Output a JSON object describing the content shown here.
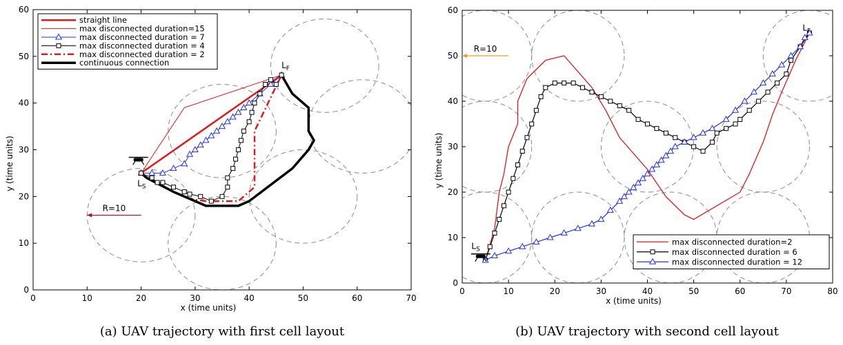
{
  "chart_data": [
    {
      "type": "line",
      "caption": "(a) UAV trajectory with first cell layout",
      "xlabel": "x (time units)",
      "ylabel": "y (time units)",
      "xlim": [
        0,
        70
      ],
      "ylim": [
        0,
        60
      ],
      "xticks": [
        0,
        10,
        20,
        30,
        40,
        50,
        60,
        70
      ],
      "yticks": [
        0,
        10,
        20,
        30,
        40,
        50,
        60
      ],
      "grid": false,
      "legend_position": "top-left",
      "cells": [
        {
          "cx": 20,
          "cy": 16,
          "r": 10
        },
        {
          "cx": 35,
          "cy": 10,
          "r": 10
        },
        {
          "cx": 35,
          "cy": 34,
          "r": 10
        },
        {
          "cx": 50,
          "cy": 20,
          "r": 10
        },
        {
          "cx": 54,
          "cy": 48,
          "r": 10
        },
        {
          "cx": 61,
          "cy": 35,
          "r": 10
        }
      ],
      "annotations": {
        "start_label": "L",
        "start_sub": "S",
        "final_label": "L",
        "final_sub": "F",
        "radius_label": "R=10",
        "radius_color": "#a5152d"
      },
      "start": [
        20,
        25
      ],
      "final": [
        46,
        46
      ],
      "series": [
        {
          "name": "straight line",
          "color": "#e01818",
          "width": 2.5,
          "dash": "",
          "marker": "none",
          "points": [
            [
              20,
              25
            ],
            [
              46,
              46
            ]
          ]
        },
        {
          "name": "max disconnected duration=15",
          "color": "#e01818",
          "width": 1,
          "dash": "",
          "marker": "none",
          "points": [
            [
              20,
              25
            ],
            [
              28,
              39
            ],
            [
              46,
              46
            ]
          ]
        },
        {
          "name": "max disconnected duration = 7",
          "color": "#2030f0",
          "width": 1,
          "dash": "",
          "marker": "triangle",
          "points": [
            [
              20,
              25
            ],
            [
              22,
              25
            ],
            [
              24,
              25
            ],
            [
              26,
              26
            ],
            [
              28,
              27
            ],
            [
              29,
              29
            ],
            [
              30,
              30
            ],
            [
              31,
              31
            ],
            [
              32,
              32
            ],
            [
              33,
              33
            ],
            [
              34,
              34
            ],
            [
              35,
              35
            ],
            [
              36,
              36
            ],
            [
              37,
              37
            ],
            [
              38,
              38
            ],
            [
              39,
              39
            ],
            [
              40,
              40
            ],
            [
              42,
              42
            ],
            [
              44,
              44
            ],
            [
              46,
              46
            ]
          ]
        },
        {
          "name": "max disconnected duration = 4",
          "color": "#000000",
          "width": 1,
          "dash": "",
          "marker": "square",
          "points": [
            [
              20,
              25
            ],
            [
              22,
              24
            ],
            [
              23,
              23
            ],
            [
              24,
              23
            ],
            [
              26,
              22
            ],
            [
              28,
              21
            ],
            [
              29,
              20.5
            ],
            [
              31,
              20
            ],
            [
              33,
              19
            ],
            [
              35,
              20
            ],
            [
              36,
              22
            ],
            [
              36,
              24
            ],
            [
              37,
              26
            ],
            [
              37.5,
              28
            ],
            [
              38,
              30
            ],
            [
              38.5,
              32
            ],
            [
              39,
              34
            ],
            [
              40,
              36
            ],
            [
              40.5,
              38
            ],
            [
              41,
              40
            ],
            [
              42,
              42
            ],
            [
              43,
              44
            ],
            [
              44,
              45
            ],
            [
              45,
              44
            ],
            [
              46,
              46
            ]
          ]
        },
        {
          "name": "max disconnected duration = 2",
          "color": "#e01818",
          "width": 2.5,
          "dash": "9 4 2 4",
          "marker": "none",
          "points": [
            [
              20,
              25
            ],
            [
              26,
              21
            ],
            [
              29,
              19.5
            ],
            [
              32,
              19
            ],
            [
              38,
              19
            ],
            [
              40,
              21
            ],
            [
              41,
              22
            ],
            [
              41,
              34
            ],
            [
              46,
              46
            ]
          ]
        },
        {
          "name": "continuous connection",
          "color": "#000000",
          "width": 3.5,
          "dash": "",
          "marker": "none",
          "points": [
            [
              20,
              25
            ],
            [
              21,
              24
            ],
            [
              26,
              21
            ],
            [
              32,
              18
            ],
            [
              38,
              18
            ],
            [
              40,
              19
            ],
            [
              48,
              26
            ],
            [
              51,
              30
            ],
            [
              52,
              32
            ],
            [
              51,
              34
            ],
            [
              51,
              39
            ],
            [
              48,
              42
            ],
            [
              46,
              46
            ]
          ]
        }
      ]
    },
    {
      "type": "line",
      "caption": "(b) UAV trajectory with second cell layout",
      "xlabel": "x (time units)",
      "ylabel": "y (time units)",
      "xlim": [
        0,
        80
      ],
      "ylim": [
        0,
        60
      ],
      "xticks": [
        0,
        10,
        20,
        30,
        40,
        50,
        60,
        70,
        80
      ],
      "yticks": [
        0,
        10,
        20,
        30,
        40,
        50,
        60
      ],
      "grid": false,
      "legend_position": "bottom-right",
      "cells": [
        {
          "cx": 5,
          "cy": 50,
          "r": 10
        },
        {
          "cx": 25,
          "cy": 50,
          "r": 10
        },
        {
          "cx": 75,
          "cy": 50,
          "r": 10
        },
        {
          "cx": 5,
          "cy": 30,
          "r": 10
        },
        {
          "cx": 40,
          "cy": 30,
          "r": 10
        },
        {
          "cx": 65,
          "cy": 30,
          "r": 10
        },
        {
          "cx": 5,
          "cy": 10,
          "r": 10
        },
        {
          "cx": 25,
          "cy": 10,
          "r": 10
        },
        {
          "cx": 45,
          "cy": 10,
          "r": 10
        },
        {
          "cx": 65,
          "cy": 10,
          "r": 10
        }
      ],
      "annotations": {
        "start_label": "L",
        "start_sub": "S",
        "final_label": "L",
        "final_sub": "F",
        "radius_label": "R=10",
        "radius_color": "#e6a020"
      },
      "start": [
        5,
        5
      ],
      "final": [
        75,
        55
      ],
      "series": [
        {
          "name": "max disconnected duration=2",
          "color": "#e01818",
          "width": 1.3,
          "dash": "",
          "marker": "none",
          "points": [
            [
              5,
              5
            ],
            [
              7,
              12
            ],
            [
              8,
              20
            ],
            [
              9,
              24
            ],
            [
              10,
              30
            ],
            [
              12,
              35
            ],
            [
              12,
              40
            ],
            [
              14,
              45
            ],
            [
              18,
              49
            ],
            [
              20,
              49.5
            ],
            [
              22,
              50
            ],
            [
              28,
              43
            ],
            [
              31,
              38
            ],
            [
              34,
              32
            ],
            [
              40,
              25
            ],
            [
              44,
              19
            ],
            [
              48,
              15
            ],
            [
              50,
              14
            ],
            [
              55,
              17
            ],
            [
              60,
              20
            ],
            [
              62,
              24
            ],
            [
              65,
              31
            ],
            [
              67,
              37
            ],
            [
              69,
              42
            ],
            [
              72,
              49
            ],
            [
              75,
              55
            ]
          ]
        },
        {
          "name": "max disconnected duration = 6",
          "color": "#000000",
          "width": 1.2,
          "dash": "",
          "marker": "square",
          "points": [
            [
              5,
              5
            ],
            [
              6,
              8
            ],
            [
              7,
              11
            ],
            [
              8,
              14
            ],
            [
              9,
              17
            ],
            [
              10,
              20
            ],
            [
              11,
              23
            ],
            [
              12,
              26
            ],
            [
              13,
              29
            ],
            [
              14,
              32
            ],
            [
              15,
              35
            ],
            [
              16,
              38
            ],
            [
              17,
              41
            ],
            [
              18,
              43
            ],
            [
              20,
              44
            ],
            [
              22,
              44
            ],
            [
              24,
              44
            ],
            [
              26,
              43
            ],
            [
              28,
              42
            ],
            [
              30,
              41
            ],
            [
              32,
              40
            ],
            [
              34,
              39
            ],
            [
              36,
              38
            ],
            [
              38,
              36
            ],
            [
              40,
              35
            ],
            [
              42,
              34
            ],
            [
              44,
              33
            ],
            [
              46,
              32
            ],
            [
              48,
              31
            ],
            [
              50,
              30
            ],
            [
              52,
              29
            ],
            [
              54,
              31
            ],
            [
              55,
              33
            ],
            [
              57,
              34
            ],
            [
              59,
              35
            ],
            [
              60,
              36
            ],
            [
              62,
              38
            ],
            [
              64,
              40
            ],
            [
              66,
              42
            ],
            [
              68,
              44
            ],
            [
              70,
              46
            ],
            [
              71,
              49
            ],
            [
              73,
              52
            ],
            [
              75,
              55
            ]
          ]
        },
        {
          "name": "max disconnected duration = 12",
          "color": "#2030f0",
          "width": 1.2,
          "dash": "",
          "marker": "triangle",
          "points": [
            [
              5,
              5
            ],
            [
              7,
              6
            ],
            [
              10,
              7
            ],
            [
              13,
              8
            ],
            [
              16,
              9
            ],
            [
              19,
              10
            ],
            [
              22,
              11
            ],
            [
              25,
              12
            ],
            [
              28,
              13
            ],
            [
              30,
              14
            ],
            [
              32,
              16
            ],
            [
              34,
              18
            ],
            [
              35,
              19
            ],
            [
              36,
              20
            ],
            [
              37,
              21
            ],
            [
              38,
              22
            ],
            [
              39,
              23
            ],
            [
              40,
              24
            ],
            [
              41,
              25
            ],
            [
              42,
              26
            ],
            [
              43,
              27
            ],
            [
              44,
              28
            ],
            [
              45,
              29
            ],
            [
              46,
              30
            ],
            [
              48,
              31
            ],
            [
              50,
              32
            ],
            [
              52,
              33
            ],
            [
              54,
              34
            ],
            [
              57,
              36
            ],
            [
              59,
              38
            ],
            [
              61,
              40
            ],
            [
              63,
              42
            ],
            [
              65,
              44
            ],
            [
              67,
              46
            ],
            [
              69,
              48
            ],
            [
              71,
              50
            ],
            [
              73,
              52
            ],
            [
              74,
              54
            ],
            [
              75,
              55
            ]
          ]
        }
      ]
    }
  ]
}
